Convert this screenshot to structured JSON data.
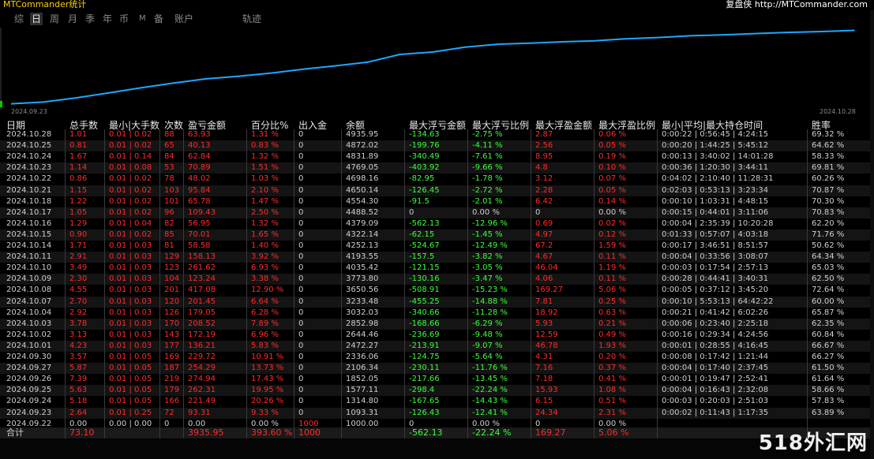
{
  "app_title": "MTCommander统计",
  "brand": "复盘侠 http://MTCommander.com",
  "tabs": [
    {
      "label": "综",
      "active": false
    },
    {
      "label": "日",
      "active": true
    },
    {
      "label": "周",
      "active": false
    },
    {
      "label": "月",
      "active": false
    },
    {
      "label": "季",
      "active": false
    },
    {
      "label": "年",
      "active": false
    },
    {
      "label": "币",
      "active": false
    },
    {
      "label": "M",
      "active": false
    },
    {
      "label": "备",
      "active": false
    },
    {
      "label": "账户",
      "active": false
    },
    {
      "label": "轨迹",
      "active": false
    }
  ],
  "chart_data": {
    "type": "line",
    "x_start_label": "2024.09.23",
    "x_end_label": "2024.10.28",
    "x": [
      "2024.09.22",
      "2024.09.23",
      "2024.09.24",
      "2024.09.25",
      "2024.09.26",
      "2024.09.27",
      "2024.09.30",
      "2024.10.01",
      "2024.10.02",
      "2024.10.03",
      "2024.10.04",
      "2024.10.07",
      "2024.10.08",
      "2024.10.09",
      "2024.10.10",
      "2024.10.11",
      "2024.10.14",
      "2024.10.15",
      "2024.10.16",
      "2024.10.17",
      "2024.10.18",
      "2024.10.21",
      "2024.10.22",
      "2024.10.23",
      "2024.10.24",
      "2024.10.25",
      "2024.10.28"
    ],
    "values": [
      1000.0,
      1093.31,
      1314.8,
      1577.11,
      1852.05,
      2106.34,
      2336.06,
      2472.27,
      2644.46,
      2852.98,
      3032.03,
      3233.48,
      3650.56,
      3773.8,
      4035.42,
      4193.55,
      4252.13,
      4322.14,
      4379.09,
      4488.52,
      4554.3,
      4650.14,
      4698.16,
      4769.05,
      4831.89,
      4872.02,
      4935.95
    ],
    "series_color": "#1ea7ff"
  },
  "table": {
    "headers": [
      "日期",
      "总手数",
      "最小|大手数",
      "次数",
      "盈亏金额",
      "百分比%",
      "出入金",
      "余额",
      "最大浮亏金额",
      "最大浮亏比例",
      "最大浮盈金额",
      "最大浮盈比例",
      "最小|平均|最大持仓时间",
      "胜率"
    ],
    "rows": [
      [
        "2024.10.28",
        "1.01",
        "0.01 | 0.02",
        "88",
        "63.93",
        "1.31 %",
        "0",
        "4935.95",
        "-134.63",
        "-2.75 %",
        "2.87",
        "0.06 %",
        "0:00:22 | 0:56:45 | 4:24:15",
        "69.32 %"
      ],
      [
        "2024.10.25",
        "0.81",
        "0.01 | 0.02",
        "65",
        "40.13",
        "0.83 %",
        "0",
        "4872.02",
        "-199.76",
        "-4.11 %",
        "2.56",
        "0.05 %",
        "0:00:20 | 1:44:25 | 5:45:12",
        "64.62 %"
      ],
      [
        "2024.10.24",
        "1.67",
        "0.01 | 0.14",
        "84",
        "62.84",
        "1.32 %",
        "0",
        "4831.89",
        "-340.49",
        "-7.61 %",
        "8.95",
        "0.19 %",
        "0:00:13 | 3:40:02 | 14:01:28",
        "58.33 %"
      ],
      [
        "2024.10.23",
        "1.14",
        "0.01 | 0.08",
        "53",
        "70.89",
        "1.51 %",
        "0",
        "4769.05",
        "-403.92",
        "-9.66 %",
        "4.8",
        "0.10 %",
        "0:00:36 | 1:20:30 | 3:44:11",
        "69.81 %"
      ],
      [
        "2024.10.22",
        "0.86",
        "0.01 | 0.02",
        "78",
        "48.02",
        "1.03 %",
        "0",
        "4698.16",
        "-82.95",
        "-1.78 %",
        "3.12",
        "0.07 %",
        "0:04:02 | 2:10:40 | 11:28:31",
        "60.26 %"
      ],
      [
        "2024.10.21",
        "1.15",
        "0.01 | 0.02",
        "103",
        "95.84",
        "2.10 %",
        "0",
        "4650.14",
        "-126.45",
        "-2.72 %",
        "2.28",
        "0.05 %",
        "0:02:03 | 0:53:13 | 3:23:34",
        "70.87 %"
      ],
      [
        "2024.10.18",
        "1.22",
        "0.01 | 0.02",
        "101",
        "65.78",
        "1.47 %",
        "0",
        "4554.30",
        "-91.5",
        "-2.01 %",
        "6.42",
        "0.14 %",
        "0:00:10 | 1:03:31 | 4:48:15",
        "70.30 %"
      ],
      [
        "2024.10.17",
        "1.05",
        "0.01 | 0.02",
        "96",
        "109.43",
        "2.50 %",
        "0",
        "4488.52",
        "0",
        "0.00 %",
        "0",
        "0.00 %",
        "0:00:15 | 0:44:01 | 3:11:06",
        "70.83 %"
      ],
      [
        "2024.10.16",
        "1.29",
        "0.01 | 0.04",
        "82",
        "56.95",
        "1.32 %",
        "0",
        "4379.09",
        "-562.13",
        "-12.96 %",
        "0.69",
        "0.02 %",
        "0:00:04 | 2:35:39 | 10:20:28",
        "62.20 %"
      ],
      [
        "2024.10.15",
        "0.90",
        "0.01 | 0.02",
        "85",
        "70.01",
        "1.65 %",
        "0",
        "4322.14",
        "-62.15",
        "-1.45 %",
        "4.97",
        "0.12 %",
        "0:01:33 | 0:57:07 | 4:03:18",
        "71.76 %"
      ],
      [
        "2024.10.14",
        "1.71",
        "0.01 | 0.03",
        "81",
        "58.58",
        "1.40 %",
        "0",
        "4252.13",
        "-524.67",
        "-12.49 %",
        "67.2",
        "1.59 %",
        "0:00:17 | 3:46:51 | 8:51:57",
        "50.62 %"
      ],
      [
        "2024.10.11",
        "2.91",
        "0.01 | 0.03",
        "129",
        "158.13",
        "3.92 %",
        "0",
        "4193.55",
        "-157.5",
        "-3.82 %",
        "4.67",
        "0.11 %",
        "0:00:04 | 0:33:56 | 3:08:07",
        "64.34 %"
      ],
      [
        "2024.10.10",
        "3.49",
        "0.01 | 0.03",
        "123",
        "261.62",
        "6.93 %",
        "0",
        "4035.42",
        "-121.15",
        "-3.05 %",
        "46.04",
        "1.19 %",
        "0:00:03 | 0:17:54 | 2:57:13",
        "65.03 %"
      ],
      [
        "2024.10.09",
        "2.30",
        "0.01 | 0.03",
        "104",
        "123.24",
        "3.38 %",
        "0",
        "3773.80",
        "-130.16",
        "-3.47 %",
        "4.06",
        "0.11 %",
        "0:00:28 | 0:44:41 | 3:40:31",
        "62.50 %"
      ],
      [
        "2024.10.08",
        "4.55",
        "0.01 | 0.03",
        "201",
        "417.08",
        "12.90 %",
        "0",
        "3650.56",
        "-508.91",
        "-15.23 %",
        "169.27",
        "5.06 %",
        "0:00:05 | 0:37:12 | 3:45:20",
        "72.64 %"
      ],
      [
        "2024.10.07",
        "2.70",
        "0.01 | 0.03",
        "120",
        "201.45",
        "6.64 %",
        "0",
        "3233.48",
        "-455.25",
        "-14.88 %",
        "7.81",
        "0.25 %",
        "0:00:10 | 5:53:13 | 64:42:22",
        "60.00 %"
      ],
      [
        "2024.10.04",
        "2.92",
        "0.01 | 0.03",
        "126",
        "179.05",
        "6.28 %",
        "0",
        "3032.03",
        "-340.66",
        "-11.28 %",
        "18.92",
        "0.63 %",
        "0:00:21 | 0:41:42 | 6:02:26",
        "65.87 %"
      ],
      [
        "2024.10.03",
        "3.78",
        "0.01 | 0.03",
        "170",
        "208.52",
        "7.89 %",
        "0",
        "2852.98",
        "-168.66",
        "-6.29 %",
        "5.93",
        "0.21 %",
        "0:00:06 | 0:23:40 | 2:25:18",
        "62.35 %"
      ],
      [
        "2024.10.02",
        "3.13",
        "0.01 | 0.03",
        "143",
        "172.19",
        "6.96 %",
        "0",
        "2644.46",
        "-236.69",
        "-9.48 %",
        "12.59",
        "0.49 %",
        "0:00:16 | 0:29:34 | 4:24:56",
        "60.84 %"
      ],
      [
        "2024.10.01",
        "4.23",
        "0.01 | 0.03",
        "177",
        "136.21",
        "5.83 %",
        "0",
        "2472.27",
        "-213.91",
        "-9.07 %",
        "46.78",
        "1.93 %",
        "0:00:01 | 0:28:55 | 4:16:45",
        "66.67 %"
      ],
      [
        "2024.09.30",
        "3.57",
        "0.01 | 0.05",
        "169",
        "229.72",
        "10.91 %",
        "0",
        "2336.06",
        "-124.75",
        "-5.64 %",
        "4.31",
        "0.20 %",
        "0:00:08 | 0:17:42 | 1:21:44",
        "66.27 %"
      ],
      [
        "2024.09.27",
        "5.87",
        "0.01 | 0.05",
        "187",
        "254.29",
        "13.73 %",
        "0",
        "2106.34",
        "-230.11",
        "-11.76 %",
        "7.16",
        "0.37 %",
        "0:00:04 | 0:17:40 | 2:37:45",
        "61.50 %"
      ],
      [
        "2024.09.26",
        "7.39",
        "0.01 | 0.05",
        "219",
        "274.94",
        "17.43 %",
        "0",
        "1852.05",
        "-217.66",
        "-13.45 %",
        "7.18",
        "0.41 %",
        "0:00:01 | 0:19:47 | 2:52:41",
        "61.64 %"
      ],
      [
        "2024.09.25",
        "5.63",
        "0.01 | 0.05",
        "179",
        "262.31",
        "19.95 %",
        "0",
        "1577.11",
        "-298.4",
        "-22.24 %",
        "15.93",
        "1.08 %",
        "0:00:04 | 0:16:43 | 2:32:08",
        "58.66 %"
      ],
      [
        "2024.09.24",
        "5.18",
        "0.01 | 0.05",
        "166",
        "221.49",
        "20.26 %",
        "0",
        "1314.80",
        "-167.65",
        "-14.43 %",
        "6.15",
        "0.51 %",
        "0:00:03 | 0:20:03 | 2:51:03",
        "57.83 %"
      ],
      [
        "2024.09.23",
        "2.64",
        "0.01 | 0.25",
        "72",
        "93.31",
        "9.33 %",
        "0",
        "1093.31",
        "-126.43",
        "-12.41 %",
        "24.34",
        "2.31 %",
        "0:00:02 | 0:11:43 | 1:17:35",
        "63.89 %"
      ],
      [
        "2024.09.22",
        "0.00",
        "0.00 | 0.00",
        "0",
        "0.00",
        "0.00 %",
        "1000",
        "1000.00",
        "0",
        "0.00 %",
        "0",
        "0.00 %",
        "",
        ""
      ]
    ],
    "total": [
      "合计",
      "73.10",
      "",
      "",
      "3935.95",
      "393.60 %",
      "1000",
      "",
      "-562.13",
      "-22.24 %",
      "169.27",
      "5.06 %",
      "",
      ""
    ]
  },
  "colors": {
    "accent": "#1ea7ff",
    "profit": "#ff2b2b",
    "loss": "#3dff3d",
    "title": "#ffd000"
  },
  "watermark": "518外汇网"
}
